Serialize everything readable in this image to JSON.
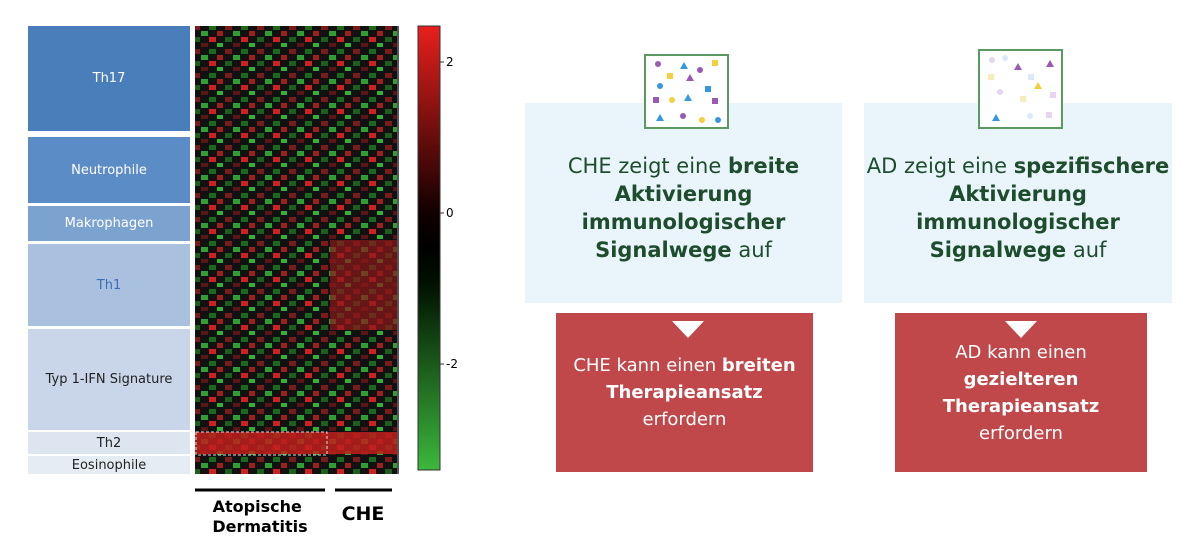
{
  "heatmap": {
    "groups": [
      "Th17",
      "Neutrophile",
      "Makrophagen",
      "Th1",
      "Typ 1-IFN Signature",
      "Th2",
      "Eosinophile"
    ],
    "colorbar_ticks": [
      2,
      0,
      -2
    ],
    "columns": [
      "Atopische Dermatitis",
      "CHE"
    ]
  },
  "panels": [
    {
      "top": [
        [
          {
            "text": "CHE zeigt eine ",
            "bold": false
          },
          {
            "text": "breite",
            "bold": true
          }
        ],
        [
          {
            "text": "Aktivierung",
            "bold": true
          }
        ],
        [
          {
            "text": "immunologischer",
            "bold": true
          }
        ],
        [
          {
            "text": "Signalwege",
            "bold": true
          },
          {
            "text": " auf",
            "bold": false
          }
        ]
      ],
      "bottom": [
        [
          {
            "text": "CHE kann einen ",
            "bold": false
          },
          {
            "text": "breiten",
            "bold": true
          }
        ],
        [
          {
            "text": "Therapieansatz",
            "bold": true
          }
        ],
        [
          {
            "text": "erfordern",
            "bold": false
          }
        ]
      ]
    },
    {
      "top": [
        [
          {
            "text": "AD zeigt eine ",
            "bold": false
          },
          {
            "text": "spezifischere",
            "bold": true
          }
        ],
        [
          {
            "text": "Aktivierung",
            "bold": true
          }
        ],
        [
          {
            "text": "immunologischer",
            "bold": true
          }
        ],
        [
          {
            "text": "Signalwege",
            "bold": true
          },
          {
            "text": " auf",
            "bold": false
          }
        ]
      ],
      "bottom": [
        [
          {
            "text": "AD kann einen",
            "bold": false
          }
        ],
        [
          {
            "text": "gezielteren",
            "bold": true
          }
        ],
        [
          {
            "text": "Therapieansatz",
            "bold": true
          }
        ],
        [
          {
            "text": "erfordern",
            "bold": false
          }
        ]
      ]
    }
  ]
}
